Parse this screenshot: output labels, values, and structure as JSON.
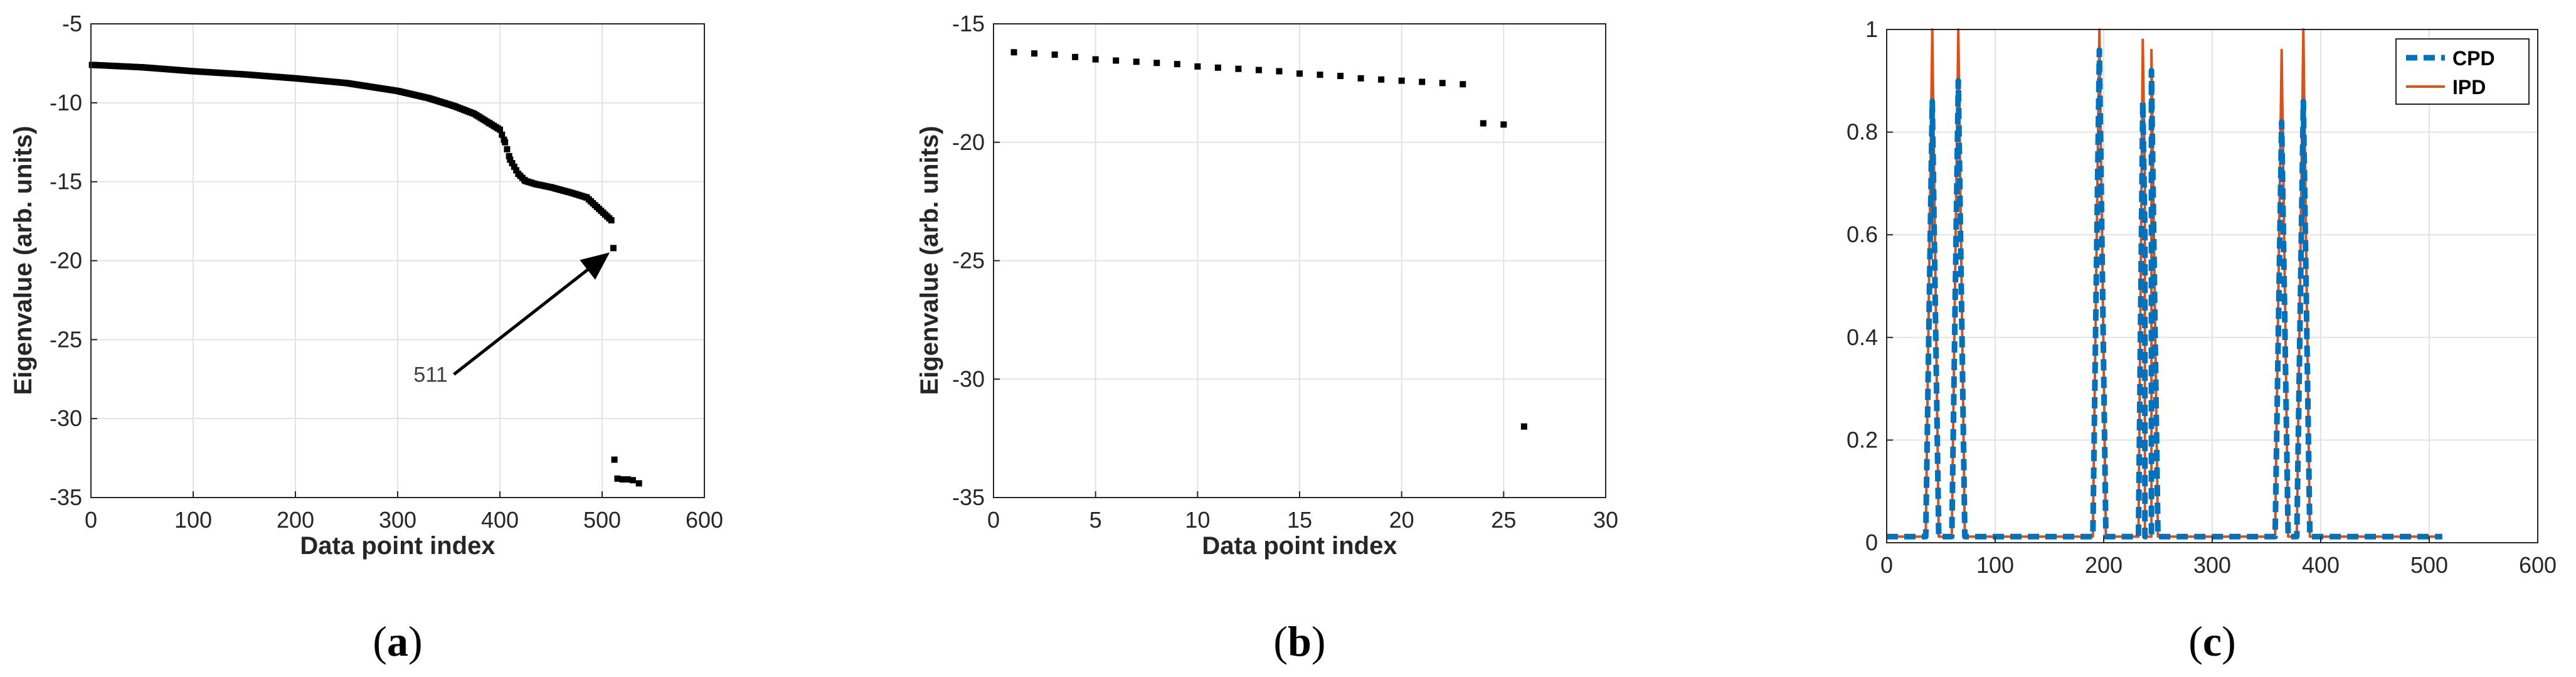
{
  "panels": [
    {
      "id": "a",
      "caption_open": "(",
      "caption_letter": "a",
      "caption_close": ")"
    },
    {
      "id": "b",
      "caption_open": "(",
      "caption_letter": "b",
      "caption_close": ")"
    },
    {
      "id": "c",
      "caption_open": "(",
      "caption_letter": "c",
      "caption_close": ")"
    }
  ],
  "chart_data": [
    {
      "type": "scatter",
      "xlabel": "Data point index",
      "ylabel": "Eigenvalue (arb. units)",
      "xlim": [
        0,
        600
      ],
      "ylim": [
        -35,
        -5
      ],
      "xticks": [
        0,
        100,
        200,
        300,
        400,
        500,
        600
      ],
      "yticks": [
        -5,
        -10,
        -15,
        -20,
        -25,
        -30,
        -35
      ],
      "grid": true,
      "annotation": {
        "text": "511",
        "from": [
          355,
          -27.2
        ],
        "to": [
          505,
          -19.6
        ]
      },
      "curve_points": [
        [
          1,
          -7.6
        ],
        [
          50,
          -7.75
        ],
        [
          100,
          -8.0
        ],
        [
          150,
          -8.2
        ],
        [
          200,
          -8.45
        ],
        [
          250,
          -8.75
        ],
        [
          300,
          -9.25
        ],
        [
          330,
          -9.7
        ],
        [
          355,
          -10.2
        ],
        [
          375,
          -10.7
        ],
        [
          390,
          -11.3
        ],
        [
          400,
          -11.7
        ],
        [
          405,
          -12.5
        ],
        [
          410,
          -13.6
        ],
        [
          418,
          -14.5
        ],
        [
          425,
          -14.95
        ],
        [
          435,
          -15.15
        ],
        [
          450,
          -15.35
        ],
        [
          470,
          -15.7
        ],
        [
          485,
          -16.0
        ],
        [
          495,
          -16.6
        ],
        [
          505,
          -17.2
        ],
        [
          510,
          -17.5
        ]
      ],
      "outliers": [
        [
          511,
          -19.2
        ],
        [
          512,
          -32.6
        ],
        [
          515,
          -33.8
        ],
        [
          520,
          -33.85
        ],
        [
          525,
          -33.85
        ],
        [
          530,
          -33.9
        ],
        [
          536,
          -34.1
        ]
      ]
    },
    {
      "type": "scatter",
      "xlabel": "Data point index",
      "ylabel": "Eigenvalue (arb. units)",
      "xlim": [
        0,
        30
      ],
      "ylim": [
        -35,
        -15
      ],
      "xticks": [
        0,
        5,
        10,
        15,
        20,
        25,
        30
      ],
      "yticks": [
        -15,
        -20,
        -25,
        -30,
        -35
      ],
      "grid": true,
      "x": [
        1,
        2,
        3,
        4,
        5,
        6,
        7,
        8,
        9,
        10,
        11,
        12,
        13,
        14,
        15,
        16,
        17,
        18,
        19,
        20,
        21,
        22,
        23,
        24,
        25,
        26
      ],
      "y": [
        -16.2,
        -16.25,
        -16.3,
        -16.4,
        -16.5,
        -16.55,
        -16.6,
        -16.65,
        -16.7,
        -16.8,
        -16.85,
        -16.9,
        -16.95,
        -17.0,
        -17.1,
        -17.15,
        -17.2,
        -17.3,
        -17.35,
        -17.4,
        -17.45,
        -17.5,
        -17.55,
        -19.2,
        -19.25,
        -32.0
      ]
    },
    {
      "type": "line",
      "xlim": [
        0,
        600
      ],
      "ylim": [
        0,
        1
      ],
      "xticks": [
        0,
        100,
        200,
        300,
        400,
        500,
        600
      ],
      "yticks": [
        0,
        0.2,
        0.4,
        0.6,
        0.8,
        1
      ],
      "grid": true,
      "legend_position": "top-right",
      "series": [
        {
          "name": "CPD",
          "color": "#0072BD",
          "style": "dashed",
          "peaks": [
            [
              42,
              0.86
            ],
            [
              66,
              0.9
            ],
            [
              196,
              0.96
            ],
            [
              236,
              0.86
            ],
            [
              238,
              0.6
            ],
            [
              244,
              0.92
            ],
            [
              364,
              0.82
            ],
            [
              384,
              0.86
            ]
          ]
        },
        {
          "name": "IPD",
          "color": "#D95319",
          "style": "solid",
          "peaks": [
            [
              42,
              1.0
            ],
            [
              66,
              1.0
            ],
            [
              196,
              1.0
            ],
            [
              236,
              0.98
            ],
            [
              238,
              0.7
            ],
            [
              244,
              0.96
            ],
            [
              364,
              0.96
            ],
            [
              384,
              1.0
            ]
          ]
        }
      ]
    }
  ]
}
